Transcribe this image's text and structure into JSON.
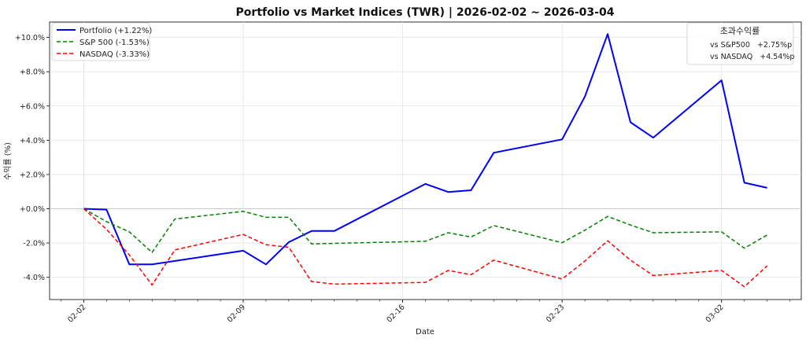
{
  "chart_data": {
    "type": "line",
    "title": "Portfolio vs Market Indices (TWR) | 2026-02-02 ~ 2026-03-04",
    "xlabel": "Date",
    "ylabel": "수익률 (%)",
    "x_ticks": [
      "02-02",
      "02-09",
      "02-16",
      "02-23",
      "03-02"
    ],
    "y_ticks": [
      "-4.0%",
      "-2.0%",
      "+0.0%",
      "+2.0%",
      "+4.0%",
      "+6.0%",
      "+8.0%",
      "+10.0%"
    ],
    "ylim": [
      -5.3,
      10.9
    ],
    "xlim": [
      -1.5,
      31.5
    ],
    "grid": true,
    "legend_position": "top-left",
    "series": [
      {
        "name": "Portfolio (+1.22%)",
        "color": "#0000ff",
        "style": "solid",
        "x": [
          0,
          1,
          2,
          3,
          7,
          8,
          9,
          10,
          11,
          15,
          16,
          17,
          18,
          21,
          22,
          23,
          24,
          25,
          28,
          29,
          30
        ],
        "y": [
          0.0,
          -0.05,
          -3.25,
          -3.25,
          -2.45,
          -3.25,
          -1.95,
          -1.3,
          -1.3,
          1.45,
          0.98,
          1.08,
          3.27,
          4.05,
          6.55,
          10.2,
          5.05,
          4.15,
          7.5,
          1.52,
          1.22
        ]
      },
      {
        "name": "S&P 500 (-1.53%)",
        "color": "#008000",
        "style": "dashed",
        "x": [
          0,
          1,
          2,
          3,
          4,
          7,
          8,
          9,
          10,
          15,
          16,
          17,
          18,
          21,
          22,
          23,
          24,
          25,
          28,
          29,
          30
        ],
        "y": [
          0.0,
          -0.75,
          -1.35,
          -2.55,
          -0.6,
          -0.15,
          -0.5,
          -0.5,
          -2.05,
          -1.9,
          -1.4,
          -1.65,
          -0.98,
          -1.98,
          -1.25,
          -0.45,
          -0.95,
          -1.4,
          -1.35,
          -2.3,
          -1.53
        ]
      },
      {
        "name": "NASDAQ (-3.33%)",
        "color": "#ff0000",
        "style": "dashed",
        "x": [
          0,
          1,
          2,
          3,
          4,
          7,
          8,
          9,
          10,
          11,
          15,
          16,
          17,
          18,
          21,
          22,
          23,
          24,
          25,
          28,
          29,
          30
        ],
        "y": [
          0.0,
          -1.2,
          -2.7,
          -4.45,
          -2.4,
          -1.5,
          -2.1,
          -2.25,
          -4.25,
          -4.4,
          -4.3,
          -3.6,
          -3.85,
          -3.0,
          -4.1,
          -3.05,
          -1.87,
          -3.0,
          -3.9,
          -3.6,
          -4.55,
          -3.33
        ]
      }
    ],
    "annotation_box": {
      "title": "초과수익률",
      "lines": [
        "vs S&P500   +2.75%p",
        "vs NASDAQ   +4.54%p"
      ],
      "position": "top-right"
    }
  }
}
